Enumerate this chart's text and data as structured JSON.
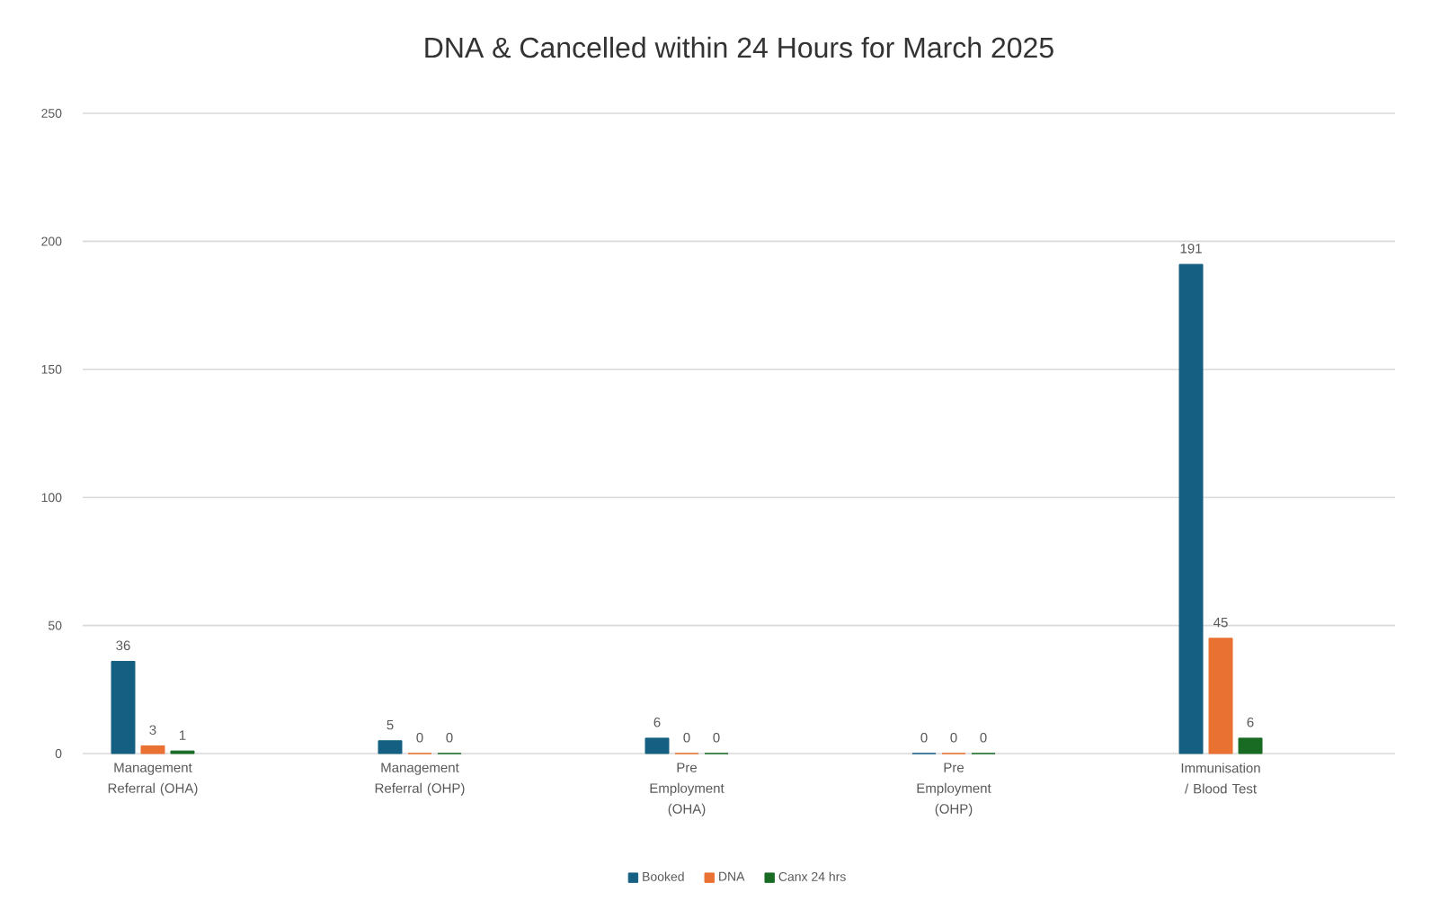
{
  "chart_data": {
    "type": "bar",
    "title": "DNA & Cancelled within 24 Hours for March 2025",
    "categories": [
      "Management Referral (OHA)",
      "Management Referral (OHP)",
      "Pre Employment (OHA)",
      "Pre Employment (OHP)",
      "Immunisation / Blood Test"
    ],
    "series": [
      {
        "name": "Booked",
        "color": "#156082",
        "values": [
          36,
          5,
          6,
          0,
          191
        ]
      },
      {
        "name": "DNA",
        "color": "#e97132",
        "values": [
          3,
          0,
          0,
          0,
          45
        ]
      },
      {
        "name": "Canx 24 hrs",
        "color": "#196b24",
        "values": [
          1,
          0,
          0,
          0,
          6
        ]
      }
    ],
    "ylim": [
      0,
      250
    ],
    "yticks": [
      0,
      50,
      100,
      150,
      200,
      250
    ],
    "grid": "y",
    "data_labels": true,
    "legend": "bottom"
  }
}
